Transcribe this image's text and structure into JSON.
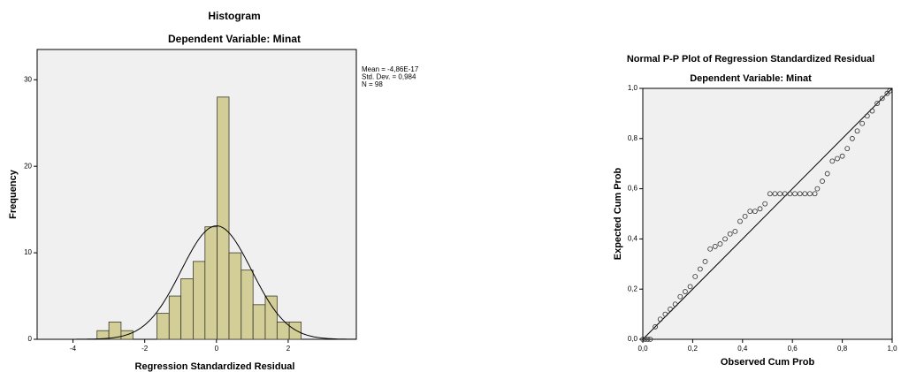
{
  "chart_data": [
    {
      "type": "histogram",
      "title": "Histogram",
      "subtitle": "Dependent Variable: Minat",
      "xlabel": "Regression Standardized Residual",
      "ylabel": "Frequency",
      "bins": [
        -3.33,
        -3.0,
        -2.66,
        -2.33,
        -1.99,
        -1.66,
        -1.32,
        -0.99,
        -0.65,
        -0.32,
        0.02,
        0.35,
        0.69,
        1.02,
        1.36,
        1.69,
        2.03,
        2.36
      ],
      "counts": [
        1,
        2,
        1,
        0,
        0,
        3,
        5,
        7,
        9,
        13,
        28,
        10,
        8,
        4,
        5,
        2,
        2
      ],
      "color": "#d3ce97",
      "stats": [
        {
          "value": -4.86e-17,
          "label": "Mean = -4,86E-17"
        },
        {
          "value": 0.984,
          "label": "Std. Dev. = 0,984"
        },
        {
          "value": 98,
          "label": "N = 98"
        }
      ],
      "xlim": [
        -5,
        3.9
      ],
      "ylim": [
        0,
        33.5
      ],
      "xticks": [
        -4,
        -2,
        0,
        2
      ],
      "yticks": [
        0,
        10,
        20,
        30
      ]
    },
    {
      "type": "scatter",
      "title": "Normal P-P Plot of Regression Standardized Residual",
      "subtitle": "Dependent Variable: Minat",
      "xlabel": "Observed Cum Prob",
      "ylabel": "Expected Cum Prob",
      "x": [
        0.0,
        0.01,
        0.02,
        0.03,
        0.05,
        0.07,
        0.09,
        0.11,
        0.13,
        0.15,
        0.17,
        0.19,
        0.21,
        0.23,
        0.25,
        0.27,
        0.29,
        0.31,
        0.33,
        0.35,
        0.37,
        0.39,
        0.41,
        0.43,
        0.45,
        0.47,
        0.49,
        0.51,
        0.53,
        0.55,
        0.57,
        0.59,
        0.61,
        0.63,
        0.65,
        0.67,
        0.69,
        0.7,
        0.72,
        0.74,
        0.76,
        0.78,
        0.8,
        0.82,
        0.84,
        0.86,
        0.88,
        0.9,
        0.92,
        0.94,
        0.96,
        0.98,
        0.99
      ],
      "y": [
        0,
        0,
        0,
        0,
        0.05,
        0.08,
        0.1,
        0.12,
        0.14,
        0.17,
        0.19,
        0.21,
        0.25,
        0.28,
        0.31,
        0.36,
        0.37,
        0.38,
        0.4,
        0.42,
        0.43,
        0.47,
        0.49,
        0.51,
        0.51,
        0.52,
        0.54,
        0.58,
        0.58,
        0.58,
        0.58,
        0.58,
        0.58,
        0.58,
        0.58,
        0.58,
        0.58,
        0.6,
        0.63,
        0.66,
        0.71,
        0.72,
        0.73,
        0.76,
        0.8,
        0.83,
        0.86,
        0.89,
        0.91,
        0.94,
        0.96,
        0.98,
        0.99
      ],
      "xlim": [
        0,
        1
      ],
      "ylim": [
        0,
        1
      ],
      "xticks": [
        {
          "value": 0,
          "label": "0,0"
        },
        {
          "value": 0.2,
          "label": "0,2"
        },
        {
          "value": 0.4,
          "label": "0,4"
        },
        {
          "value": 0.6,
          "label": "0,6"
        },
        {
          "value": 0.8,
          "label": "0,8"
        },
        {
          "value": 1,
          "label": "1,0"
        }
      ],
      "yticks": [
        {
          "value": 0,
          "label": "0,0"
        },
        {
          "value": 0.2,
          "label": "0,2"
        },
        {
          "value": 0.4,
          "label": "0,4"
        },
        {
          "value": 0.6,
          "label": "0,6"
        },
        {
          "value": 0.8,
          "label": "0,8"
        },
        {
          "value": 1,
          "label": "1,0"
        }
      ]
    }
  ]
}
